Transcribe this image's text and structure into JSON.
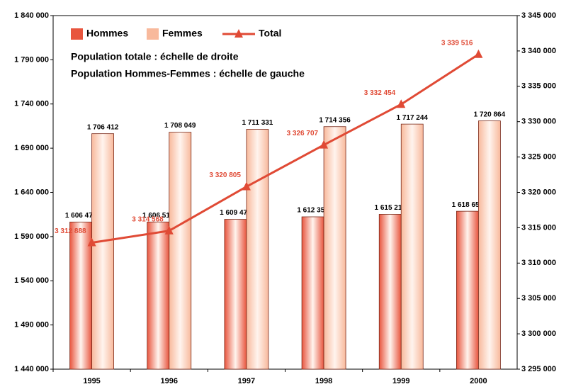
{
  "chart_data": {
    "type": "bar",
    "annotations": [
      "Population totale : échelle de droite",
      "Population Hommes-Femmes : échelle de gauche"
    ],
    "categories": [
      "1995",
      "1996",
      "1997",
      "1998",
      "1999",
      "2000"
    ],
    "series": [
      {
        "name": "Hommes",
        "type": "bar",
        "color": "#e8553e",
        "values": [
          1606476,
          1606519,
          1609474,
          1612351,
          1615210,
          1618652
        ],
        "value_labels": [
          "1 606 476",
          "1 606 519",
          "1 609 474",
          "1 612 351",
          "1 615 210",
          "1 618 652"
        ]
      },
      {
        "name": "Femmes",
        "type": "bar",
        "color": "#f8b99c",
        "values": [
          1706412,
          1708049,
          1711331,
          1714356,
          1717244,
          1720864
        ],
        "value_labels": [
          "1 706 412",
          "1 708 049",
          "1 711 331",
          "1 714 356",
          "1 717 244",
          "1 720 864"
        ]
      },
      {
        "name": "Total",
        "type": "line",
        "axis": "y2",
        "color": "#e04a35",
        "values": [
          3312888,
          3314568,
          3320805,
          3326707,
          3332454,
          3339516
        ],
        "value_labels": [
          "3 312 888",
          "3 314 568",
          "3 320 805",
          "3 326 707",
          "3 332 454",
          "3 339 516"
        ]
      }
    ],
    "ylim": [
      1440000,
      1840000
    ],
    "yticks": [
      {
        "value": 1440000,
        "label": "1 440 000"
      },
      {
        "value": 1490000,
        "label": "1 490 000"
      },
      {
        "value": 1540000,
        "label": "1 540 000"
      },
      {
        "value": 1590000,
        "label": "1 590 000"
      },
      {
        "value": 1640000,
        "label": "1 640 000"
      },
      {
        "value": 1690000,
        "label": "1 690 000"
      },
      {
        "value": 1740000,
        "label": "1 740 000"
      },
      {
        "value": 1790000,
        "label": "1 790 000"
      },
      {
        "value": 1840000,
        "label": "1 840 000"
      }
    ],
    "y2lim": [
      3295000,
      3345000
    ],
    "y2ticks": [
      {
        "value": 3295000,
        "label": "3 295 000"
      },
      {
        "value": 3300000,
        "label": "3 300 000"
      },
      {
        "value": 3305000,
        "label": "3 305 000"
      },
      {
        "value": 3310000,
        "label": "3 310 000"
      },
      {
        "value": 3315000,
        "label": "3 315 000"
      },
      {
        "value": 3320000,
        "label": "3 320 000"
      },
      {
        "value": 3325000,
        "label": "3 325 000"
      },
      {
        "value": 3330000,
        "label": "3 330 000"
      },
      {
        "value": 3335000,
        "label": "3 335 000"
      },
      {
        "value": 3340000,
        "label": "3 340 000"
      },
      {
        "value": 3345000,
        "label": "3 345 000"
      }
    ],
    "grid": false,
    "legend": "top-left"
  }
}
